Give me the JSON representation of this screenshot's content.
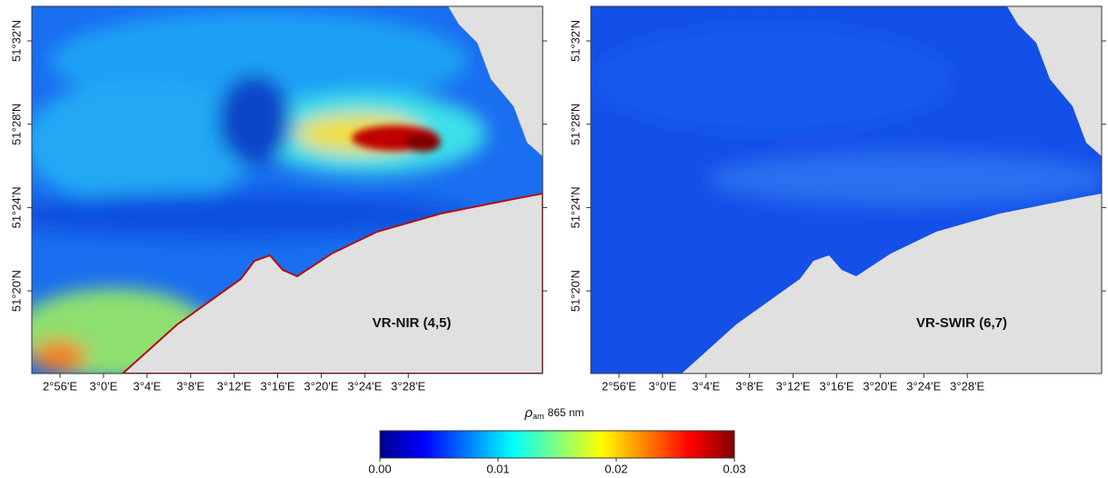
{
  "panels": [
    {
      "label": "VR-NIR (4,5)",
      "lat_labels": [
        "51°32'N",
        "51°28'N",
        "51°24'N",
        "51°20'N"
      ],
      "lon_labels": [
        "2°56'E",
        "3°0'E",
        "3°4'E",
        "3°8'E",
        "3°12'E",
        "3°16'E",
        "3°20'E",
        "3°24'E",
        "3°28'E"
      ]
    },
    {
      "label": "VR-SWIR (6,7)",
      "lat_labels": [
        "51°32'N",
        "51°28'N",
        "51°24'N",
        "51°20'N"
      ],
      "lon_labels": [
        "2°56'E",
        "3°0'E",
        "3°4'E",
        "3°8'E",
        "3°12'E",
        "3°16'E",
        "3°20'E",
        "3°24'E",
        "3°28'E"
      ]
    }
  ],
  "colorbar": {
    "symbol": "ρ",
    "subscript": "am",
    "wavelength": "865 nm",
    "ticks": [
      {
        "value": 0,
        "label": "0.00"
      },
      {
        "value": 0.01,
        "label": "0.01"
      },
      {
        "value": 0.02,
        "label": "0.02"
      },
      {
        "value": 0.03,
        "label": "0.03"
      }
    ]
  }
}
